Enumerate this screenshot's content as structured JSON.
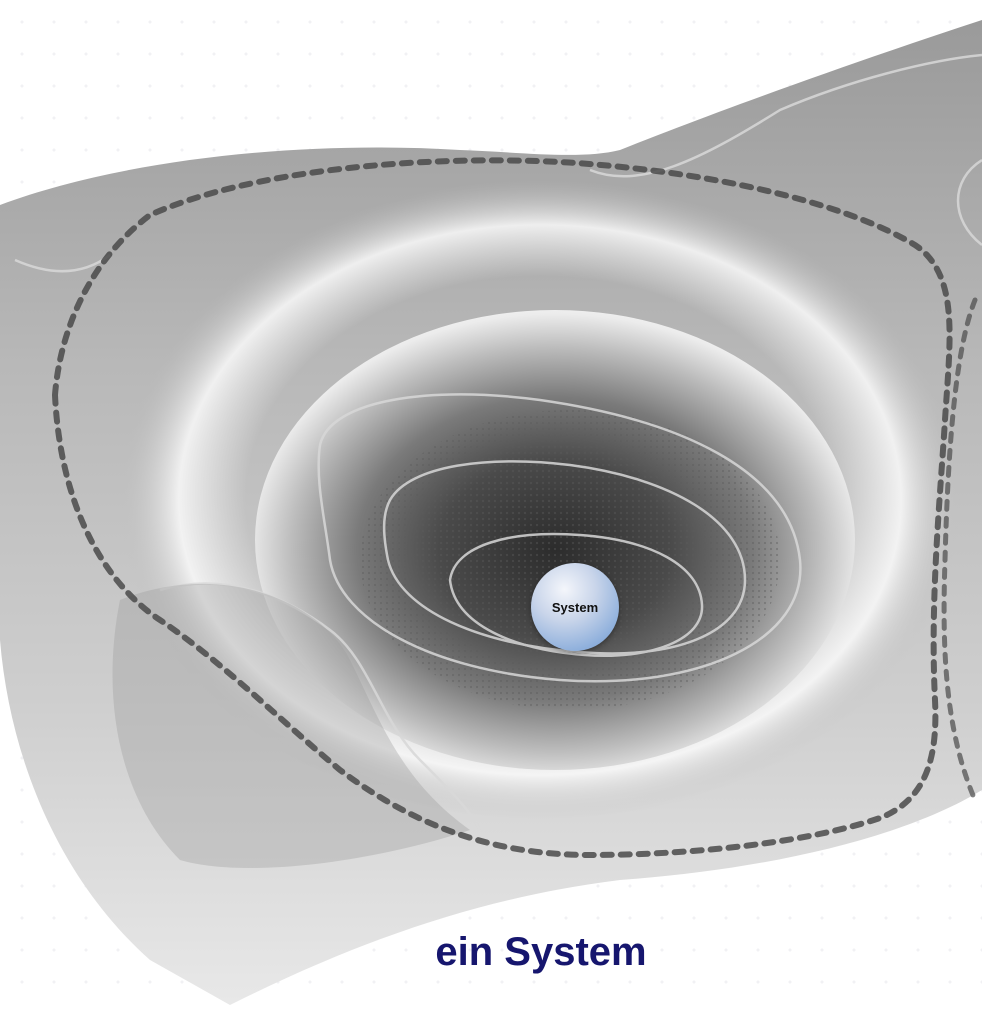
{
  "diagram": {
    "ball_label": "System",
    "caption": "ein System",
    "colors": {
      "caption": "#16166e",
      "ball": "#8fb0dc",
      "boundary": "#4a4a4a",
      "surface_dark": "#3a3a3a",
      "surface_light": "#f4f4f4"
    }
  }
}
